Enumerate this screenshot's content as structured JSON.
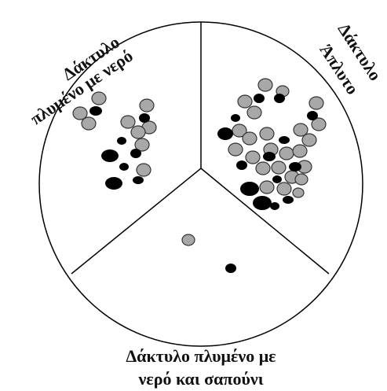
{
  "sectors": [
    {
      "label_lines": [
        "Δάκτυλο",
        "πλυμένο με νερό"
      ]
    },
    {
      "label_lines": [
        "Δάκτυλο",
        "Άπλυτο"
      ]
    },
    {
      "label_lines": [
        "Δάκτυλο πλυμένο με",
        "νερό και σαπούνι"
      ]
    }
  ]
}
